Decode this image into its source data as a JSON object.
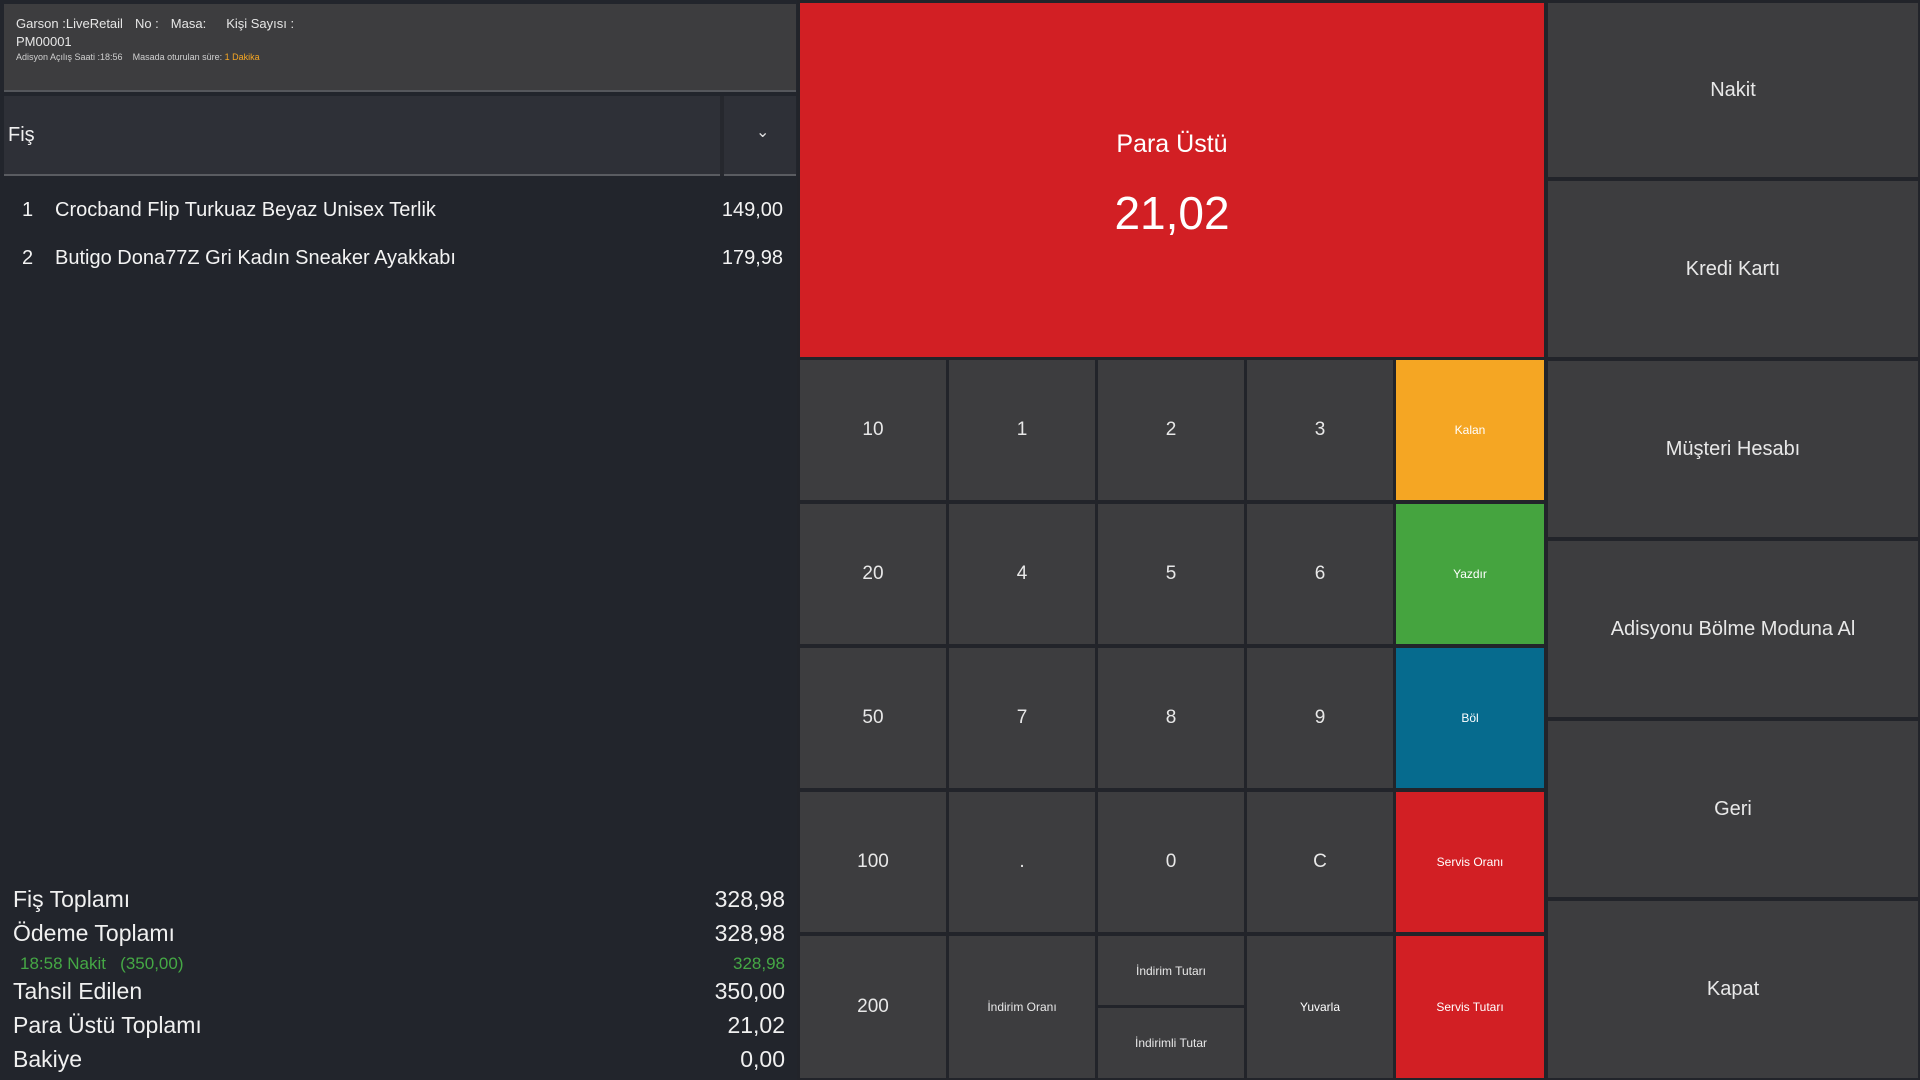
{
  "header": {
    "garson": "Garson :LiveRetail",
    "no": "No :",
    "masa": "Masa:",
    "kisi": "Kişi Sayısı :",
    "receipt_no": "PM00001",
    "acilis": "Adisyon Açılış Saati :18:56",
    "masada_label": "Masada oturulan süre:",
    "masada_value": "1 Dakika"
  },
  "receipt_select": {
    "value": "Fiş"
  },
  "items": [
    {
      "no": "1",
      "name": "Crocband Flip Turkuaz Beyaz Unisex Terlik",
      "price": "149,00"
    },
    {
      "no": "2",
      "name": "Butigo Dona77Z Gri Kadın Sneaker Ayakkabı",
      "price": "179,98"
    }
  ],
  "totals": {
    "fis_toplami_label": "Fiş Toplamı",
    "fis_toplami": "328,98",
    "odeme_toplami_label": "Ödeme Toplamı",
    "odeme_toplami": "328,98",
    "payment_line": "18:58 Nakit   (350,00)",
    "payment_line_value": "328,98",
    "tahsil_label": "Tahsil Edilen",
    "tahsil": "350,00",
    "para_ustu_label": "Para Üstü Toplamı",
    "para_ustu": "21,02",
    "bakiye_label": "Bakiye",
    "bakiye": "0,00"
  },
  "change": {
    "label": "Para Üstü",
    "value": "21,02"
  },
  "keypad": {
    "k10": "10",
    "k20": "20",
    "k50": "50",
    "k100": "100",
    "k200": "200",
    "k1": "1",
    "k2": "2",
    "k3": "3",
    "k4": "4",
    "k5": "5",
    "k6": "6",
    "k7": "7",
    "k8": "8",
    "k9": "9",
    "dot": ".",
    "k0": "0",
    "clear": "C",
    "indirim_orani": "İndirim Oranı",
    "indirim_tutari": "İndirim Tutarı",
    "indirimli_tutar": "İndirimli Tutar",
    "yuvarla": "Yuvarla",
    "kalan": "Kalan",
    "yazdir": "Yazdır",
    "bol": "Böl",
    "servis_orani": "Servis Oranı",
    "servis_tutari": "Servis Tutarı"
  },
  "actions": {
    "nakit": "Nakit",
    "kredi_karti": "Kredi Kartı",
    "musteri_hesabi": "Müşteri Hesabı",
    "bolme_modu": "Adisyonu Bölme Moduna Al",
    "geri": "Geri",
    "kapat": "Kapat"
  },
  "colors": {
    "red": "#d21f24",
    "yellow": "#f5a623",
    "green": "#45a43f",
    "blue": "#066b8e",
    "tile": "#3d3d3f",
    "background": "#22252c"
  }
}
